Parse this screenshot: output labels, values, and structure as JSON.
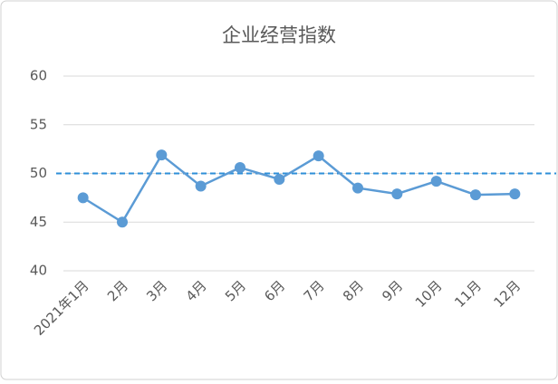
{
  "chart_data": {
    "type": "line",
    "title": "企业经营指数",
    "categories": [
      "2021年1月",
      "2月",
      "3月",
      "4月",
      "5月",
      "6月",
      "7月",
      "8月",
      "9月",
      "10月",
      "11月",
      "12月"
    ],
    "series": [
      {
        "color": "#5b9bd5",
        "values": [
          47.5,
          45.0,
          51.9,
          48.7,
          50.6,
          49.4,
          51.8,
          48.5,
          47.9,
          49.2,
          47.8,
          47.9
        ]
      }
    ],
    "ylim": [
      40,
      60
    ],
    "yticks": [
      40,
      45,
      50,
      55,
      60
    ],
    "grid": true,
    "reference_line": {
      "value": 50,
      "color": "#2e8fd8",
      "dashed": true
    }
  }
}
